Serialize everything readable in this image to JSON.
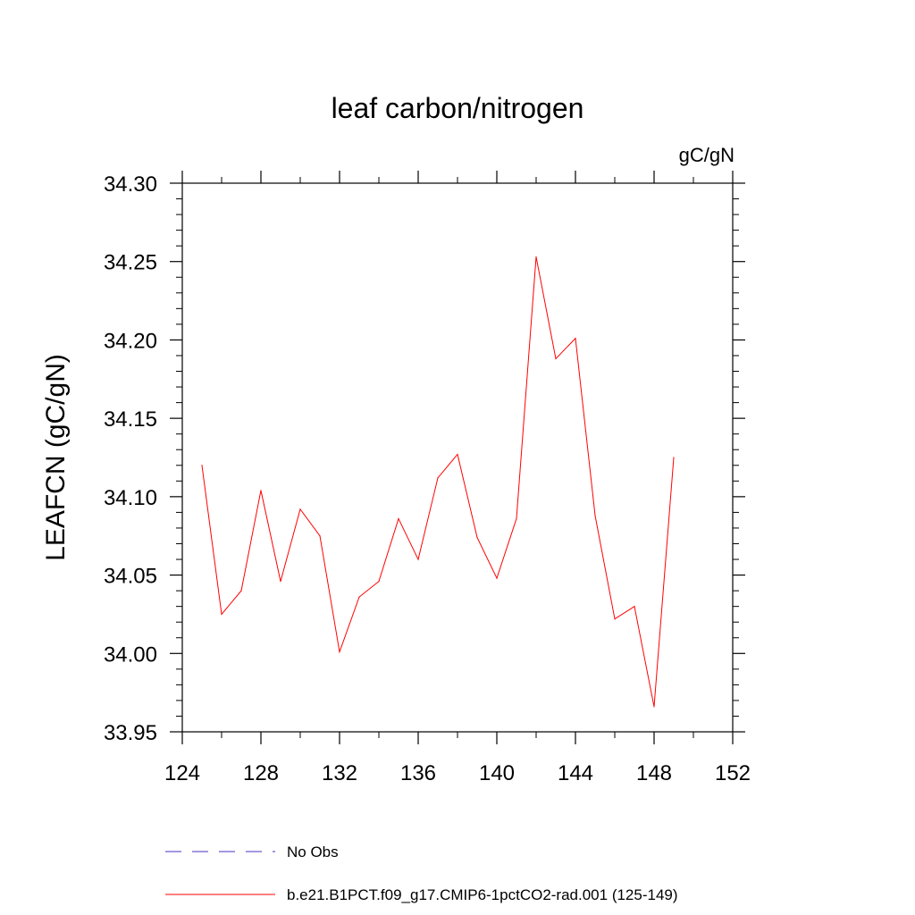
{
  "chart_data": {
    "type": "line",
    "title": "leaf carbon/nitrogen",
    "units": "gC/gN",
    "ylabel": "LEAFCN  (gC/gN)",
    "xlabel": "",
    "xlim": [
      124,
      152
    ],
    "ylim": [
      33.95,
      34.3
    ],
    "x_ticks": [
      124,
      128,
      132,
      136,
      140,
      144,
      148,
      152
    ],
    "y_ticks": [
      "33.95",
      "34.00",
      "34.05",
      "34.10",
      "34.15",
      "34.20",
      "34.25",
      "34.30"
    ],
    "grid": false,
    "legend_placement": "bottom",
    "series": [
      {
        "name": "b.e21.B1PCT.f09_g17.CMIP6-1pctCO2-rad.001 (125-149)",
        "color": "#ff0000",
        "style": "solid",
        "x": [
          125,
          126,
          127,
          128,
          129,
          130,
          131,
          132,
          133,
          134,
          135,
          136,
          137,
          138,
          139,
          140,
          141,
          142,
          143,
          144,
          145,
          146,
          147,
          148,
          149
        ],
        "y": [
          34.12,
          34.025,
          34.04,
          34.104,
          34.046,
          34.092,
          34.075,
          34.001,
          34.036,
          34.046,
          34.086,
          34.06,
          34.112,
          34.127,
          34.074,
          34.048,
          34.086,
          34.253,
          34.188,
          34.201,
          34.088,
          34.022,
          34.03,
          33.966,
          34.125
        ]
      }
    ],
    "legend": [
      {
        "label": "No Obs",
        "color": "#6a5acd",
        "style": "dashed"
      },
      {
        "label": "b.e21.B1PCT.f09_g17.CMIP6-1pctCO2-rad.001 (125-149)",
        "color": "#ff0000",
        "style": "solid"
      }
    ]
  }
}
